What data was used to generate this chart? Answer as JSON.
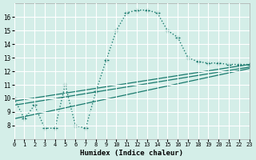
{
  "xlabel": "Humidex (Indice chaleur)",
  "bg_color": "#d4eee8",
  "line_color": "#1a7a6e",
  "grid_color": "#ffffff",
  "xmin": 0,
  "xmax": 23,
  "ymin": 7,
  "ymax": 17,
  "yticks": [
    8,
    9,
    10,
    11,
    12,
    13,
    14,
    15,
    16
  ],
  "xticks": [
    0,
    1,
    2,
    3,
    4,
    5,
    6,
    7,
    8,
    9,
    10,
    11,
    12,
    13,
    14,
    15,
    16,
    17,
    18,
    19,
    20,
    21,
    22,
    23
  ],
  "line1_x": [
    0,
    1,
    2,
    3,
    4,
    5,
    6,
    7,
    8,
    9,
    10,
    11,
    12,
    13,
    14,
    15,
    16,
    17,
    18,
    19,
    20,
    21,
    22,
    23
  ],
  "line1_y": [
    10,
    8.5,
    9.5,
    7.8,
    7.8,
    11,
    8.0,
    7.8,
    10.5,
    12.8,
    15.0,
    16.3,
    16.5,
    16.5,
    16.3,
    15.0,
    14.5,
    13.0,
    12.7,
    12.6,
    12.6,
    12.5,
    12.5,
    12.5
  ],
  "line2_x": [
    0,
    23
  ],
  "line2_y": [
    9.8,
    12.5
  ],
  "line3_x": [
    0,
    23
  ],
  "line3_y": [
    9.5,
    12.3
  ],
  "line4_x": [
    0,
    23
  ],
  "line4_y": [
    8.5,
    12.2
  ]
}
